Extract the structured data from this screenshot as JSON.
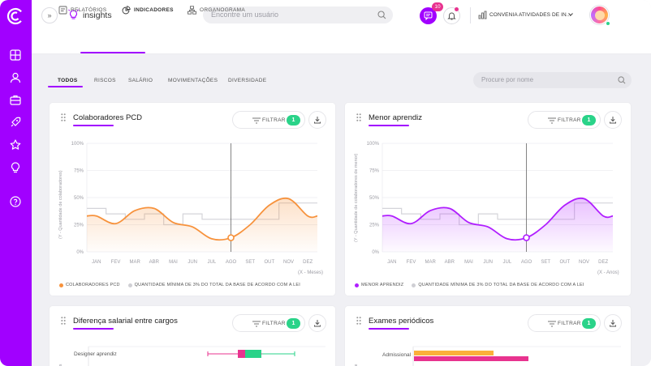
{
  "colors": {
    "accent": "#a100ff",
    "green": "#2ad389",
    "pink": "#e8338f",
    "orange": "#f7923c",
    "purple": "#b01eff",
    "yellow": "#fbb03b"
  },
  "header": {
    "app_name": "insights",
    "search_placeholder": "Encontre um usuário",
    "chat_count": "10",
    "company": "CONVENIA ATIVIDADES DE IN..."
  },
  "subnav": {
    "tabs": [
      {
        "label": "RELATÓRIOS"
      },
      {
        "label": "INDICADORES"
      },
      {
        "label": "ORGANOGRAMA"
      }
    ]
  },
  "filters": {
    "tabs": [
      {
        "label": "TODOS"
      },
      {
        "label": "RISCOS"
      },
      {
        "label": "SALÁRIO"
      },
      {
        "label": "MOVIMENTAÇÕES"
      },
      {
        "label": "DIVERSIDADE"
      }
    ],
    "search_placeholder": "Procure por nome"
  },
  "cards": [
    {
      "title": "Colaboradores PCD",
      "filter_label": "FILTRAR",
      "filter_count": "1",
      "ylabel": "(Y - Quantidade de colaboradores)",
      "xlabel": "(X - Meses)",
      "legend": [
        "COLABORADORES PCD",
        "QUANTIDADE MÍNIMA DE 3% DO TOTAL DA BASE DE ACORDO COM A LEI"
      ]
    },
    {
      "title": "Menor aprendiz",
      "filter_label": "FILTRAR",
      "filter_count": "1",
      "ylabel": "(Y - Quantidade de colaboradores de menor)",
      "xlabel": "(X - Anos)",
      "legend": [
        "MENOR APRENDIZ",
        "QUANTIDADE MÍNIMA DE 3% DO TOTAL DA BASE DE ACORDO COM A LEI"
      ]
    },
    {
      "title": "Diferença salarial entre cargos",
      "filter_label": "FILTRAR",
      "filter_count": "1",
      "ylabel": "cargos",
      "row_label": "Designer aprendiz"
    },
    {
      "title": "Exames periódicos",
      "filter_label": "FILTRAR",
      "filter_count": "1",
      "ylabel": "exame",
      "row_label": "Admissional"
    }
  ],
  "chart_data": [
    {
      "type": "line",
      "title": "Colaboradores PCD",
      "xlabel": "(X - Meses)",
      "ylabel": "(Y - Quantidade de colaboradores)",
      "x": [
        "JAN",
        "FEV",
        "MAR",
        "ABR",
        "MAI",
        "JUN",
        "JUL",
        "AGO",
        "SET",
        "OUT",
        "NOV",
        "DEZ"
      ],
      "yticks": [
        "0%",
        "25%",
        "50%",
        "75%",
        "100%"
      ],
      "ylim": [
        0,
        100
      ],
      "series": [
        {
          "name": "COLABORADORES PCD",
          "values": [
            33,
            26,
            38,
            40,
            27,
            23,
            12,
            13,
            25,
            43,
            49,
            33
          ]
        },
        {
          "name": "QUANTIDADE MÍNIMA DE 3% DO TOTAL DA BASE DE ACORDO COM A LEI",
          "values": [
            40,
            35,
            30,
            35,
            25,
            35,
            30,
            30,
            30,
            30,
            45,
            45
          ]
        }
      ],
      "highlight_index": 7
    },
    {
      "type": "line",
      "title": "Menor aprendiz",
      "xlabel": "(X - Anos)",
      "ylabel": "(Y - Quantidade de colaboradores de menor)",
      "x": [
        "JAN",
        "FEV",
        "MAR",
        "ABR",
        "MAI",
        "JUN",
        "JUL",
        "AGO",
        "SET",
        "OUT",
        "NOV",
        "DEZ"
      ],
      "yticks": [
        "0%",
        "25%",
        "50%",
        "75%",
        "100%"
      ],
      "ylim": [
        0,
        100
      ],
      "series": [
        {
          "name": "MENOR APRENDIZ",
          "values": [
            33,
            26,
            38,
            40,
            27,
            23,
            12,
            13,
            25,
            43,
            49,
            33
          ]
        },
        {
          "name": "QUANTIDADE MÍNIMA DE 3% DO TOTAL DA BASE DE ACORDO COM A LEI",
          "values": [
            40,
            35,
            30,
            35,
            25,
            35,
            30,
            30,
            30,
            30,
            45,
            45
          ]
        }
      ],
      "highlight_index": 7
    }
  ]
}
